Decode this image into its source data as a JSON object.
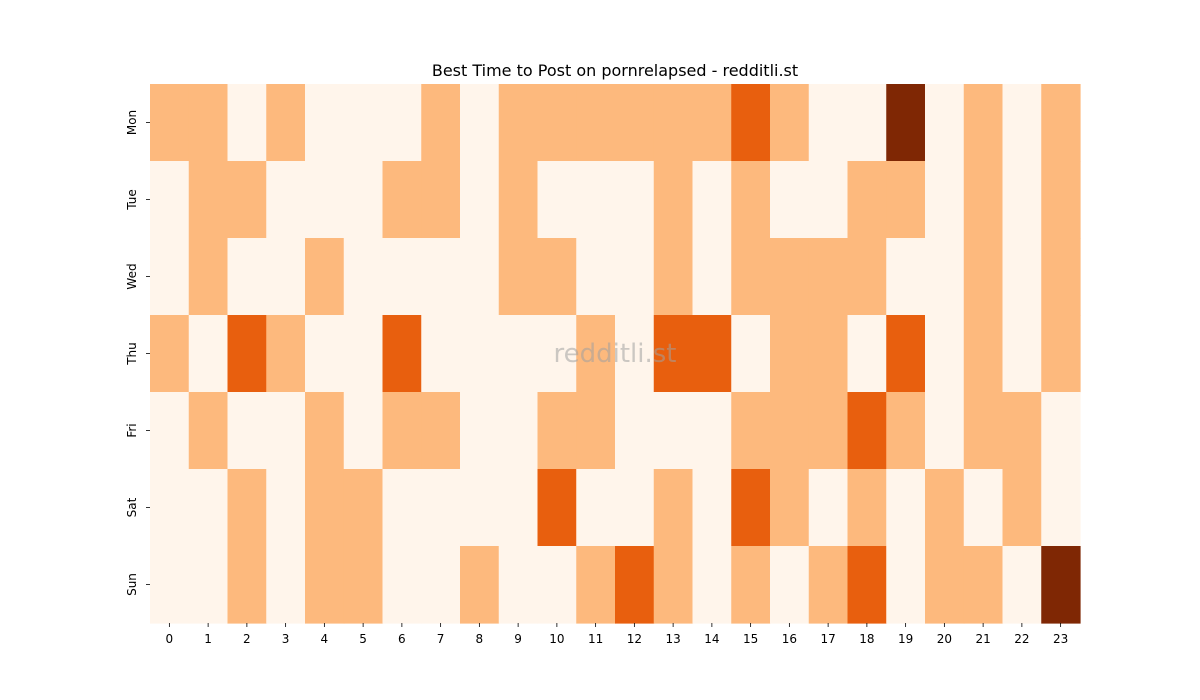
{
  "chart_data": {
    "type": "heatmap",
    "title": "Best Time to Post on pornrelapsed - redditli.st",
    "xlabel": "",
    "ylabel": "",
    "x_ticks": [
      "0",
      "1",
      "2",
      "3",
      "4",
      "5",
      "6",
      "7",
      "8",
      "9",
      "10",
      "11",
      "12",
      "13",
      "14",
      "15",
      "16",
      "17",
      "18",
      "19",
      "20",
      "21",
      "22",
      "23"
    ],
    "y_ticks": [
      "Mon",
      "Tue",
      "Wed",
      "Thu",
      "Fri",
      "Sat",
      "Sun"
    ],
    "colormap": [
      "#fff5eb",
      "#fdb97d",
      "#e85f0e",
      "#7f2704"
    ],
    "watermark": "redditli.st",
    "values": [
      [
        1,
        1,
        0,
        1,
        0,
        0,
        0,
        1,
        0,
        1,
        1,
        1,
        1,
        1,
        1,
        2,
        1,
        0,
        0,
        3,
        0,
        1,
        0,
        1
      ],
      [
        0,
        1,
        1,
        0,
        0,
        0,
        1,
        1,
        0,
        1,
        0,
        0,
        0,
        1,
        0,
        1,
        0,
        0,
        1,
        1,
        0,
        1,
        0,
        1
      ],
      [
        0,
        1,
        0,
        0,
        1,
        0,
        0,
        0,
        0,
        1,
        1,
        0,
        0,
        1,
        0,
        1,
        1,
        1,
        1,
        0,
        0,
        1,
        0,
        1
      ],
      [
        1,
        0,
        2,
        1,
        0,
        0,
        2,
        0,
        0,
        0,
        0,
        1,
        0,
        2,
        2,
        0,
        1,
        1,
        0,
        2,
        0,
        1,
        0,
        1
      ],
      [
        0,
        1,
        0,
        0,
        1,
        0,
        1,
        1,
        0,
        0,
        1,
        1,
        0,
        0,
        0,
        1,
        1,
        1,
        2,
        1,
        0,
        1,
        1,
        0
      ],
      [
        0,
        0,
        1,
        0,
        1,
        1,
        0,
        0,
        0,
        0,
        2,
        0,
        0,
        1,
        0,
        2,
        1,
        0,
        1,
        0,
        1,
        0,
        1,
        0
      ],
      [
        0,
        0,
        1,
        0,
        1,
        1,
        0,
        0,
        1,
        0,
        0,
        1,
        2,
        1,
        0,
        1,
        0,
        1,
        2,
        0,
        1,
        1,
        0,
        3
      ]
    ]
  }
}
